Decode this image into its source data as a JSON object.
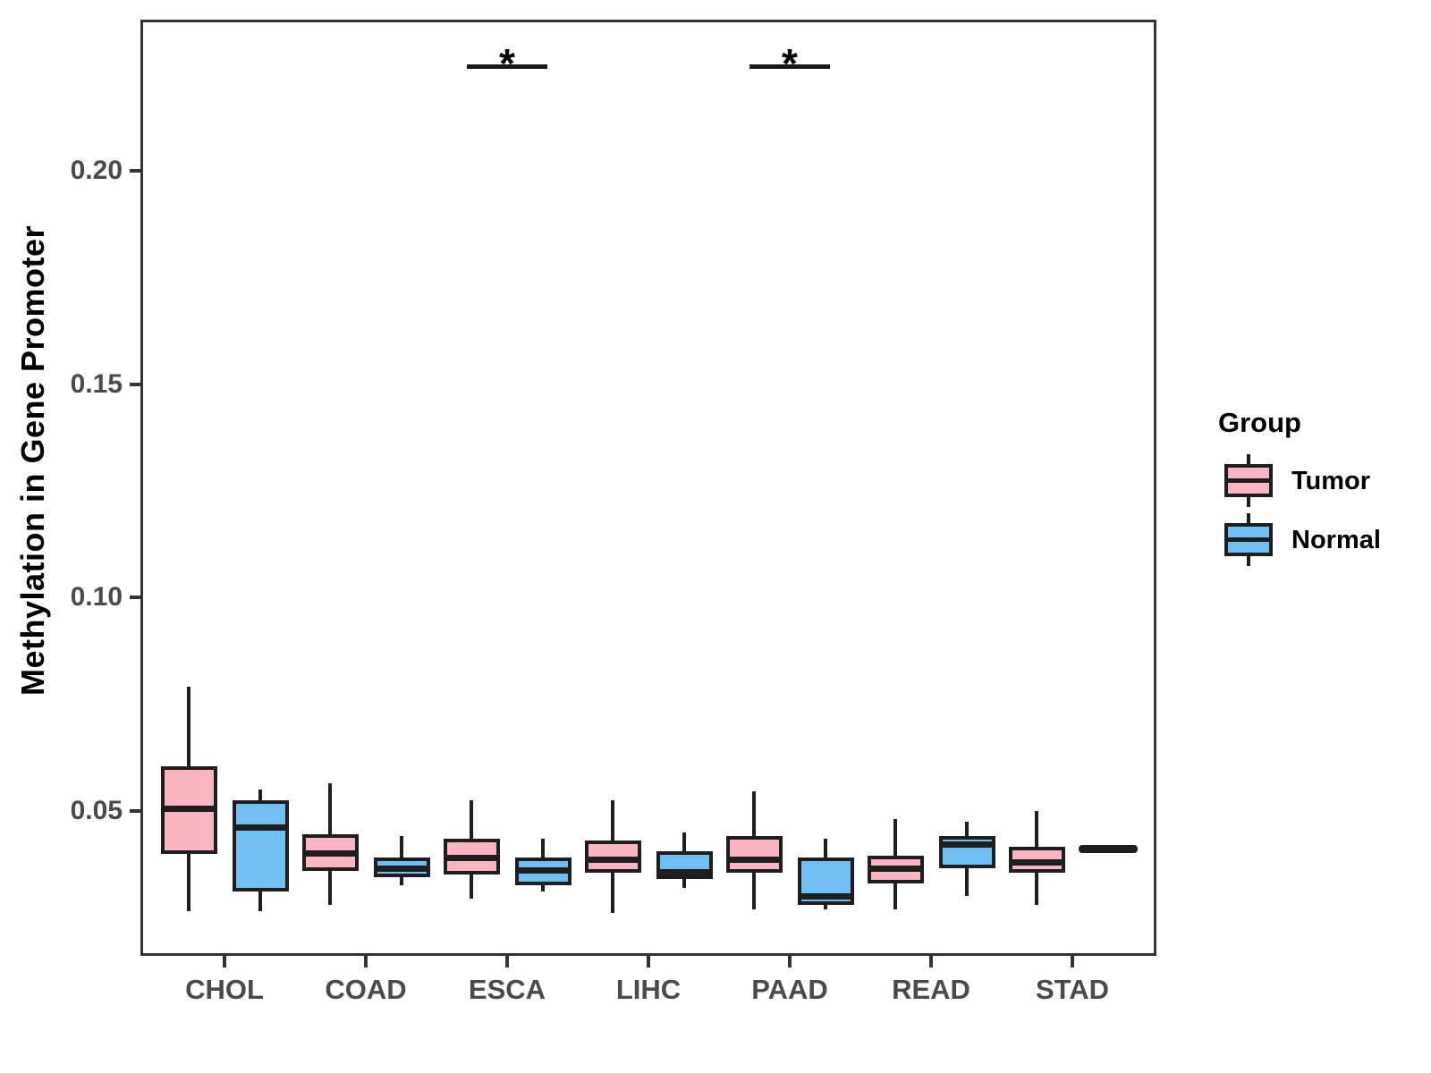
{
  "figure": {
    "y_axis_title": "Methylation in Gene Promoter",
    "background_color": "#FFFFFF"
  },
  "legend": {
    "title": "Group",
    "items": [
      {
        "label": "Tumor",
        "color": "#FAB4C2"
      },
      {
        "label": "Normal",
        "color": "#6FBFF2"
      }
    ]
  },
  "colors": {
    "panel_border": "#333333",
    "axis_text": "#4A4A4A",
    "box_stroke": "#1E1E1E",
    "tumor_fill": "#FAB4C2",
    "normal_fill": "#6FBFF2"
  },
  "chart_data": {
    "type": "grouped_boxplot",
    "title": "",
    "xlabel": "",
    "ylabel": "Methylation in Gene Promoter",
    "categories": [
      "CHOL",
      "COAD",
      "ESCA",
      "LIHC",
      "PAAD",
      "READ",
      "STAD"
    ],
    "groups": [
      "Tumor",
      "Normal"
    ],
    "ylim": [
      0.016,
      0.2355
    ],
    "yticks": [
      {
        "value": 0.05,
        "label": "0.05"
      },
      {
        "value": 0.1,
        "label": "0.10"
      },
      {
        "value": 0.15,
        "label": "0.15"
      },
      {
        "value": 0.2,
        "label": "0.20"
      }
    ],
    "grid": false,
    "legend_position": "right",
    "series": [
      {
        "name": "Tumor",
        "fill_color": "#FAB4C2",
        "stroke_color": "#1E1E1E",
        "boxes": [
          {
            "category": "CHOL",
            "whisker_low": 0.0265,
            "q1": 0.04,
            "median": 0.0505,
            "q3": 0.0605,
            "whisker_high": 0.079
          },
          {
            "category": "COAD",
            "whisker_low": 0.028,
            "q1": 0.036,
            "median": 0.04,
            "q3": 0.0445,
            "whisker_high": 0.0565
          },
          {
            "category": "ESCA",
            "whisker_low": 0.0295,
            "q1": 0.035,
            "median": 0.039,
            "q3": 0.0435,
            "whisker_high": 0.0525
          },
          {
            "category": "LIHC",
            "whisker_low": 0.026,
            "q1": 0.0355,
            "median": 0.0385,
            "q3": 0.043,
            "whisker_high": 0.0525
          },
          {
            "category": "PAAD",
            "whisker_low": 0.027,
            "q1": 0.0355,
            "median": 0.0385,
            "q3": 0.044,
            "whisker_high": 0.0545
          },
          {
            "category": "READ",
            "whisker_low": 0.027,
            "q1": 0.033,
            "median": 0.0365,
            "q3": 0.0395,
            "whisker_high": 0.048
          },
          {
            "category": "STAD",
            "whisker_low": 0.028,
            "q1": 0.0355,
            "median": 0.038,
            "q3": 0.0415,
            "whisker_high": 0.05
          }
        ]
      },
      {
        "name": "Normal",
        "fill_color": "#6FBFF2",
        "stroke_color": "#1E1E1E",
        "boxes": [
          {
            "category": "CHOL",
            "whisker_low": 0.0265,
            "q1": 0.031,
            "median": 0.046,
            "q3": 0.0525,
            "whisker_high": 0.055
          },
          {
            "category": "COAD",
            "whisker_low": 0.0325,
            "q1": 0.0345,
            "median": 0.0365,
            "q3": 0.039,
            "whisker_high": 0.044
          },
          {
            "category": "ESCA",
            "whisker_low": 0.031,
            "q1": 0.0325,
            "median": 0.036,
            "q3": 0.039,
            "whisker_high": 0.0435
          },
          {
            "category": "LIHC",
            "whisker_low": 0.032,
            "q1": 0.034,
            "median": 0.0355,
            "q3": 0.0405,
            "whisker_high": 0.045
          },
          {
            "category": "PAAD",
            "whisker_low": 0.027,
            "q1": 0.028,
            "median": 0.03,
            "q3": 0.039,
            "whisker_high": 0.0435
          },
          {
            "category": "READ",
            "whisker_low": 0.03,
            "q1": 0.0365,
            "median": 0.042,
            "q3": 0.044,
            "whisker_high": 0.0475
          },
          {
            "category": "STAD",
            "whisker_low": 0.041,
            "q1": 0.041,
            "median": 0.041,
            "q3": 0.041,
            "whisker_high": 0.041
          }
        ]
      }
    ],
    "significance_markers": [
      {
        "category": "ESCA",
        "label": "*"
      },
      {
        "category": "PAAD",
        "label": "*"
      }
    ]
  }
}
